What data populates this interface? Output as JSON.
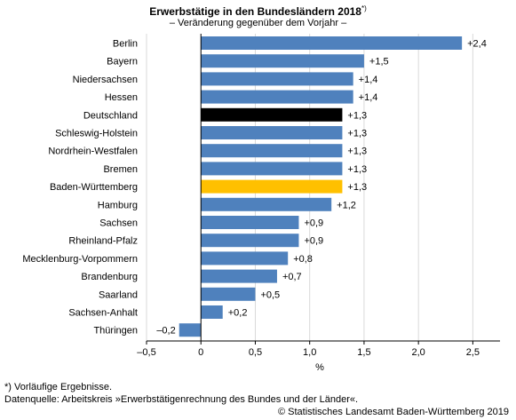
{
  "chart_data": {
    "type": "bar",
    "orientation": "horizontal",
    "title": "Erwerbstätige in den Bundesländern 2018",
    "title_marker": "*)",
    "subtitle": "– Veränderung gegenüber dem Vorjahr –",
    "xlabel": "%",
    "xlim": [
      -0.5,
      2.75
    ],
    "xticks": [
      -0.5,
      0,
      0.5,
      1,
      1.5,
      2,
      2.5
    ],
    "xtick_labels": [
      "–0,5",
      "0",
      "0,5",
      "1,0",
      "1,5",
      "2,0",
      "2,5"
    ],
    "grid": "vertical",
    "categories": [
      "Berlin",
      "Bayern",
      "Niedersachsen",
      "Hessen",
      "Deutschland",
      "Schleswig-Holstein",
      "Nordrhein-Westfalen",
      "Bremen",
      "Baden-Württemberg",
      "Hamburg",
      "Sachsen",
      "Rheinland-Pfalz",
      "Mecklenburg-Vorpommern",
      "Brandenburg",
      "Saarland",
      "Sachsen-Anhalt",
      "Thüringen"
    ],
    "values": [
      2.4,
      1.5,
      1.4,
      1.4,
      1.3,
      1.3,
      1.3,
      1.3,
      1.3,
      1.2,
      0.9,
      0.9,
      0.8,
      0.7,
      0.5,
      0.2,
      -0.2
    ],
    "value_labels": [
      "+2,4",
      "+1,5",
      "+1,4",
      "+1,4",
      "+1,3",
      "+1,3",
      "+1,3",
      "+1,3",
      "+1,3",
      "+1,2",
      "+0,9",
      "+0,9",
      "+0,8",
      "+0,7",
      "+0,5",
      "+0,2",
      "–0,2"
    ],
    "colors": {
      "default": "#4f81bd",
      "Deutschland": "#000000",
      "Baden-Württemberg": "#ffc000",
      "grid": "#d9d9d9",
      "axis": "#000000"
    }
  },
  "footnotes": {
    "note": "*) Vorläufige Ergebnisse.",
    "source": "Datenquelle: Arbeitskreis »Erwerbstätigenrechnung des Bundes und der Länder«.",
    "copyright": "© Statistisches Landesamt Baden-Württemberg 2019"
  }
}
